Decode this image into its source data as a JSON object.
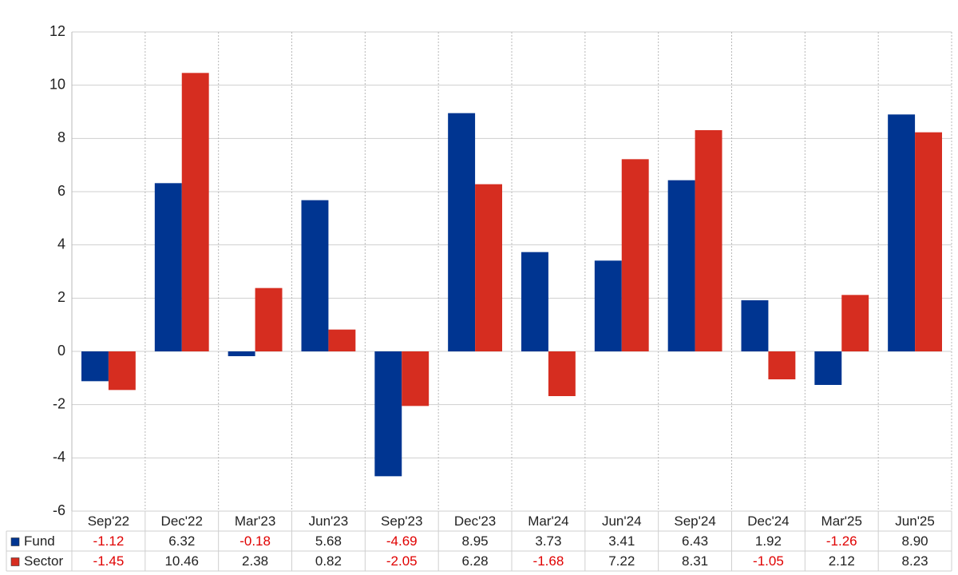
{
  "chart_data": {
    "type": "bar",
    "categories": [
      "Sep'22",
      "Dec'22",
      "Mar'23",
      "Jun'23",
      "Sep'23",
      "Dec'23",
      "Mar'24",
      "Jun'24",
      "Sep'24",
      "Dec'24",
      "Mar'25",
      "Jun'25"
    ],
    "series": [
      {
        "name": "Fund",
        "color": "#003591",
        "values": [
          -1.12,
          6.32,
          -0.18,
          5.68,
          -4.69,
          8.95,
          3.73,
          3.41,
          6.43,
          1.92,
          -1.26,
          8.9
        ],
        "value_labels": [
          "-1.12",
          "6.32",
          "-0.18",
          "5.68",
          "-4.69",
          "8.95",
          "3.73",
          "3.41",
          "6.43",
          "1.92",
          "-1.26",
          "8.90"
        ]
      },
      {
        "name": "Sector",
        "color": "#d62d20",
        "values": [
          -1.45,
          10.46,
          2.38,
          0.82,
          -2.05,
          6.28,
          -1.68,
          7.22,
          8.31,
          -1.05,
          2.12,
          8.23
        ],
        "value_labels": [
          "-1.45",
          "10.46",
          "2.38",
          "0.82",
          "-2.05",
          "6.28",
          "-1.68",
          "7.22",
          "8.31",
          "-1.05",
          "2.12",
          "8.23"
        ]
      }
    ],
    "ylim": [
      -6,
      12
    ],
    "yticks": [
      -6,
      -4,
      -2,
      0,
      2,
      4,
      6,
      8,
      10,
      12
    ],
    "grid": true,
    "negative_color": "#e00000"
  }
}
